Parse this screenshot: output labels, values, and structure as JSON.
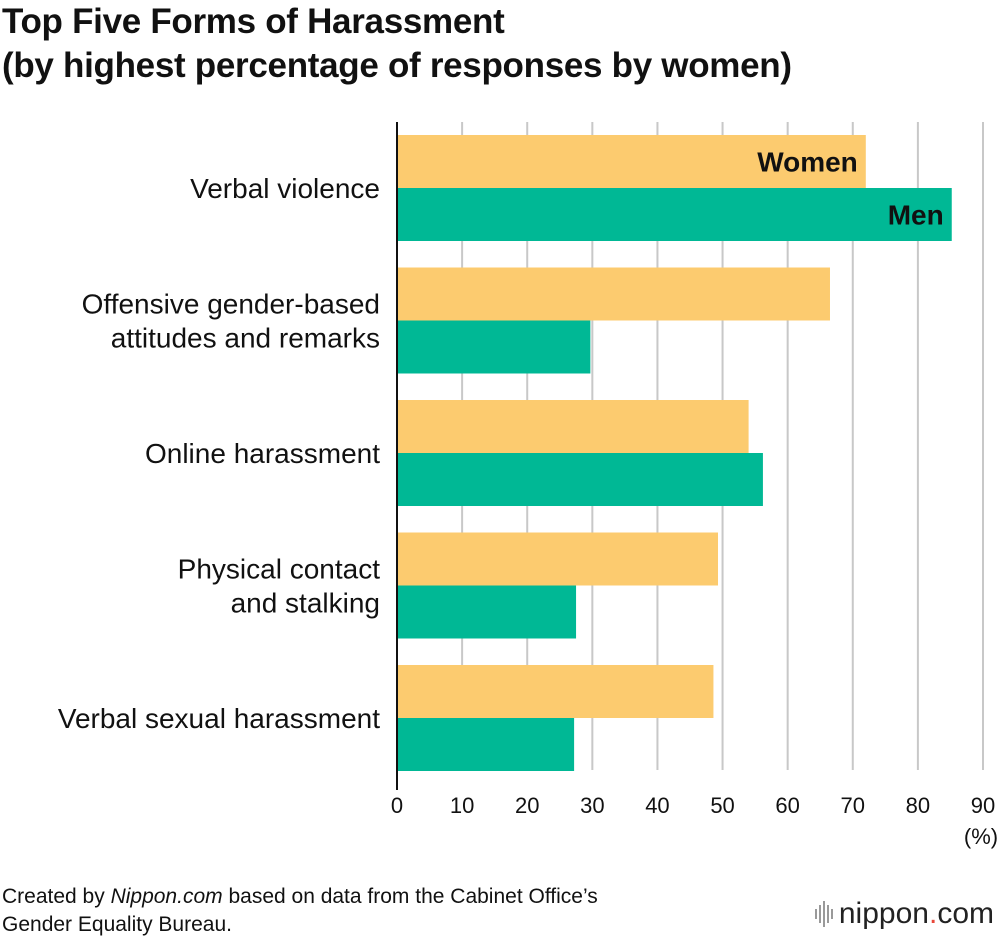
{
  "title": {
    "line1": "Top Five Forms of Harassment",
    "line2": "(by highest percentage of responses by women)"
  },
  "colors": {
    "women": "#FCCB6F",
    "men": "#00B895",
    "grid": "#C8C8C8",
    "axis": "#111111",
    "logo_accent": "#E8483B"
  },
  "chart_data": {
    "type": "bar",
    "orientation": "horizontal",
    "categories": [
      [
        "Verbal violence"
      ],
      [
        "Offensive gender-based",
        "attitudes and remarks"
      ],
      [
        "Online harassment"
      ],
      [
        "Physical contact",
        "and stalking"
      ],
      [
        "Verbal sexual harassment"
      ]
    ],
    "series": [
      {
        "name": "Women",
        "values": [
          72.0,
          66.5,
          54.0,
          49.3,
          48.6
        ]
      },
      {
        "name": "Men",
        "values": [
          85.2,
          29.7,
          56.2,
          27.5,
          27.2
        ]
      }
    ],
    "xlim": [
      0,
      90
    ],
    "xticks": [
      0,
      10,
      20,
      30,
      40,
      50,
      60,
      70,
      80,
      90
    ],
    "xunit": "(%)",
    "grid": true
  },
  "footer": {
    "prefix": "Created by ",
    "source_name": "Nippon.com",
    "suffix": " based on data from the Cabinet Office’s",
    "line2": "Gender Equality Bureau."
  },
  "logo": {
    "word": "nippon",
    "dot": ".",
    "tld": "com"
  }
}
